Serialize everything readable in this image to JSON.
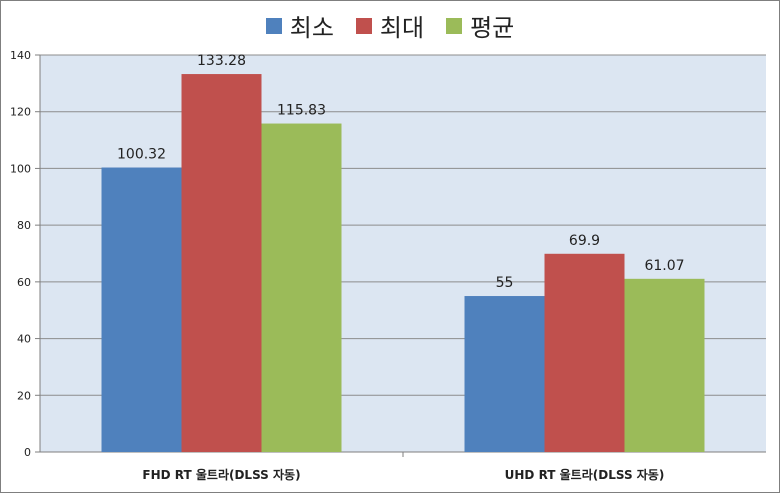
{
  "chart_data": {
    "type": "bar",
    "categories": [
      "FHD RT 울트라(DLSS 자동)",
      "UHD RT 울트라(DLSS 자동)"
    ],
    "series": [
      {
        "name": "최소",
        "values": [
          100.32,
          55
        ],
        "labels": [
          "100.32",
          "55"
        ],
        "color": "#4f81bd"
      },
      {
        "name": "최대",
        "values": [
          133.28,
          69.9
        ],
        "labels": [
          "133.28",
          "69.9"
        ],
        "color": "#c0504d"
      },
      {
        "name": "평균",
        "values": [
          115.83,
          61.07
        ],
        "labels": [
          "115.83",
          "61.07"
        ],
        "color": "#9bbb59"
      }
    ],
    "ylim": [
      0,
      140
    ],
    "yticks": [
      "0",
      "20",
      "40",
      "60",
      "80",
      "100",
      "120",
      "140"
    ],
    "grid": true,
    "legend_position": "top-center",
    "plot_background": "#dce6f2",
    "grid_color": "#8c8c8c"
  }
}
